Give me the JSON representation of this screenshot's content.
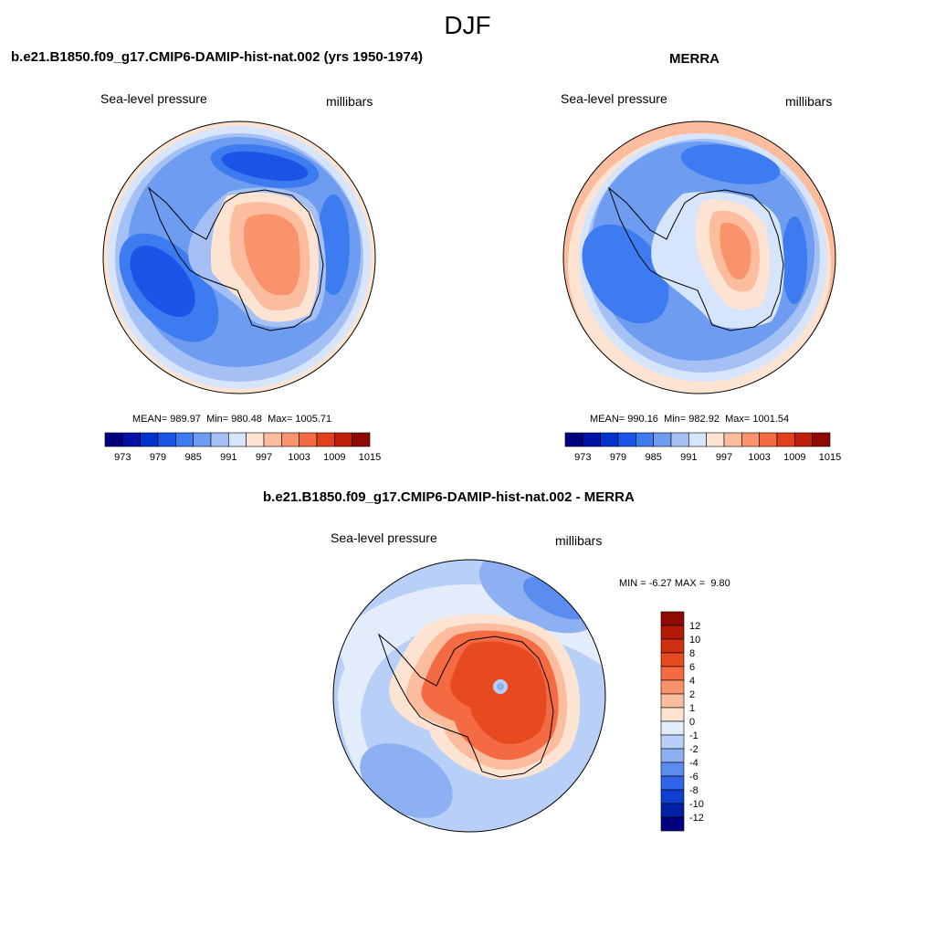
{
  "figure": {
    "title": "DJF"
  },
  "chart_data": [
    {
      "type": "heatmap",
      "projection": "south-polar-stereographic",
      "title": "b.e21.B1850.f09_g17.CMIP6-DAMIP-hist-nat.002 (yrs 1950-1974)",
      "left_label": "Sea-level pressure",
      "right_label": "millibars",
      "stats": {
        "mean_label": "MEAN=",
        "mean": "989.97",
        "min_label": "Min=",
        "min": "980.48",
        "max_label": "Max=",
        "max": "1005.71"
      },
      "colorbar": {
        "orientation": "horizontal",
        "tick_labels": [
          "973",
          "979",
          "985",
          "991",
          "997",
          "1003",
          "1009",
          "1015"
        ],
        "colors": [
          "#00007f",
          "#0011a8",
          "#0033cc",
          "#1a55e8",
          "#3d7bf0",
          "#6e9cf0",
          "#a5c0f5",
          "#d6e5fb",
          "#fde4d2",
          "#fcbc9e",
          "#f9936b",
          "#f46a42",
          "#e1401e",
          "#c0200b",
          "#8e0a02"
        ]
      }
    },
    {
      "type": "heatmap",
      "projection": "south-polar-stereographic",
      "title": "MERRA",
      "left_label": "Sea-level pressure",
      "right_label": "millibars",
      "stats": {
        "mean_label": "MEAN=",
        "mean": "990.16",
        "min_label": "Min=",
        "min": "982.92",
        "max_label": "Max=",
        "max": "1001.54"
      },
      "colorbar": {
        "orientation": "horizontal",
        "tick_labels": [
          "973",
          "979",
          "985",
          "991",
          "997",
          "1003",
          "1009",
          "1015"
        ],
        "colors": [
          "#00007f",
          "#0011a8",
          "#0033cc",
          "#1a55e8",
          "#3d7bf0",
          "#6e9cf0",
          "#a5c0f5",
          "#d6e5fb",
          "#fde4d2",
          "#fcbc9e",
          "#f9936b",
          "#f46a42",
          "#e1401e",
          "#c0200b",
          "#8e0a02"
        ]
      }
    },
    {
      "type": "heatmap",
      "projection": "south-polar-stereographic",
      "title": "b.e21.B1850.f09_g17.CMIP6-DAMIP-hist-nat.002 - MERRA",
      "left_label": "Sea-level pressure",
      "right_label": "millibars",
      "stats": {
        "min_label": "MIN =",
        "min": "-6.27",
        "max_label": "MAX =",
        "max": "9.80"
      },
      "colorbar": {
        "orientation": "vertical",
        "tick_labels": [
          "12",
          "10",
          "8",
          "6",
          "4",
          "2",
          "1",
          "0",
          "-1",
          "-2",
          "-4",
          "-6",
          "-8",
          "-10",
          "-12"
        ],
        "colors": [
          "#8e0a02",
          "#b21a07",
          "#d0300f",
          "#e64a1e",
          "#f46a42",
          "#f9936b",
          "#fcbc9e",
          "#fde4d2",
          "#e2ecfb",
          "#b8cff7",
          "#8cb0f2",
          "#5b8cef",
          "#2f64e6",
          "#0f3fd1",
          "#0021a6",
          "#00007f"
        ]
      }
    }
  ]
}
